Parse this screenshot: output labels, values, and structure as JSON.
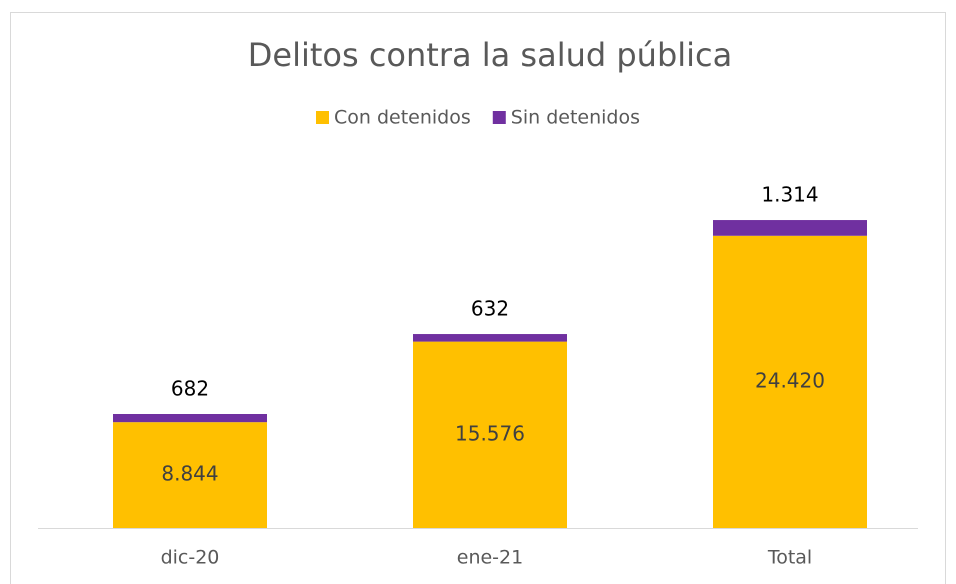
{
  "chart_data": {
    "type": "stacked_bar",
    "title": "Delitos contra la salud pública",
    "categories": [
      "dic-20",
      "ene-21",
      "Total"
    ],
    "series": [
      {
        "name": "Con detenidos",
        "color": "#ffc000",
        "values": [
          8844,
          15576,
          24420
        ],
        "value_labels": [
          "8.844",
          "15.576",
          "24.420"
        ]
      },
      {
        "name": "Sin detenidos",
        "color": "#7030a0",
        "values": [
          682,
          632,
          1314
        ],
        "value_labels": [
          "682",
          "632",
          "1.314"
        ]
      }
    ],
    "ylim": [
      0,
      30000
    ],
    "legend": "top"
  }
}
